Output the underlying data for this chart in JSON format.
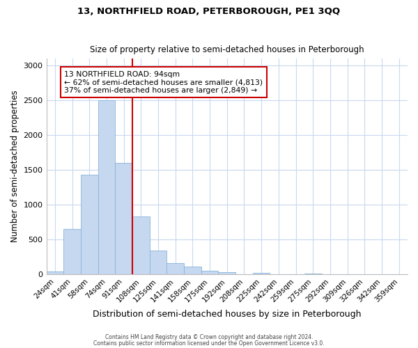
{
  "title1": "13, NORTHFIELD ROAD, PETERBOROUGH, PE1 3QQ",
  "title2": "Size of property relative to semi-detached houses in Peterborough",
  "xlabel": "Distribution of semi-detached houses by size in Peterborough",
  "ylabel": "Number of semi-detached properties",
  "footer1": "Contains HM Land Registry data © Crown copyright and database right 2024.",
  "footer2": "Contains public sector information licensed under the Open Government Licence v3.0.",
  "categories": [
    "24sqm",
    "41sqm",
    "58sqm",
    "74sqm",
    "91sqm",
    "108sqm",
    "125sqm",
    "141sqm",
    "158sqm",
    "175sqm",
    "192sqm",
    "208sqm",
    "225sqm",
    "242sqm",
    "259sqm",
    "275sqm",
    "292sqm",
    "309sqm",
    "326sqm",
    "342sqm",
    "359sqm"
  ],
  "values": [
    40,
    650,
    1430,
    2500,
    1600,
    830,
    340,
    160,
    110,
    50,
    30,
    0,
    25,
    0,
    0,
    10,
    0,
    0,
    0,
    0,
    0
  ],
  "bar_color": "#c5d8f0",
  "bar_edge_color": "#8ab4d8",
  "property_label": "13 NORTHFIELD ROAD: 94sqm",
  "pct_smaller": 62,
  "n_smaller": 4813,
  "pct_larger": 37,
  "n_larger": 2849,
  "vline_color": "#cc0000",
  "annotation_box_color": "#cc0000",
  "ylim": [
    0,
    3100
  ],
  "yticks": [
    0,
    500,
    1000,
    1500,
    2000,
    2500,
    3000
  ],
  "background_color": "#ffffff",
  "grid_color": "#c8d8ee"
}
